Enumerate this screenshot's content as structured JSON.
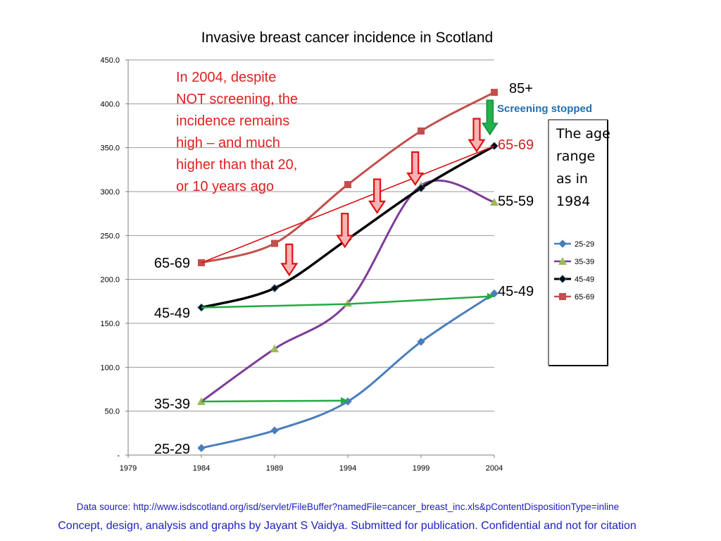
{
  "chart_data": {
    "type": "line",
    "title": "Invasive breast cancer incidence in Scotland",
    "x_ticks": [
      "1979",
      "1984",
      "1989",
      "1994",
      "1999",
      "2004"
    ],
    "xlim": [
      1979,
      2004
    ],
    "y_ticks": [
      "-",
      "50.0",
      "100.0",
      "150.0",
      "200.0",
      "250.0",
      "300.0",
      "350.0",
      "400.0",
      "450.0"
    ],
    "ylim": [
      0,
      450
    ],
    "grid": "horizontal",
    "legend_placement": "right",
    "series": [
      {
        "name": "25-29",
        "color": "#4a7ebb",
        "marker": "diamond",
        "x": [
          1984,
          1989,
          1994,
          1999,
          2004
        ],
        "y": [
          8,
          28,
          61,
          129,
          184
        ]
      },
      {
        "name": "35-39",
        "color": "#7d3c98",
        "marker": "triangle",
        "x": [
          1984,
          1989,
          1994,
          1999,
          2004
        ],
        "y": [
          61,
          121,
          173,
          307,
          288
        ]
      },
      {
        "name": "45-49",
        "color": "#000000",
        "marker": "diamond",
        "x": [
          1984,
          1989,
          1994,
          1999,
          2004
        ],
        "y": [
          168,
          190,
          246,
          304,
          352
        ]
      },
      {
        "name": "65-69",
        "color": "#c0504d",
        "marker": "square",
        "x": [
          1984,
          1989,
          1994,
          1999,
          2004
        ],
        "y": [
          219,
          241,
          308,
          369,
          413
        ]
      }
    ],
    "overlay_lines": [
      {
        "color": "#dd1111",
        "x": [
          1984,
          2004
        ],
        "y": [
          219,
          352
        ]
      },
      {
        "color": "#22aa44",
        "x": [
          1984,
          1994,
          2004
        ],
        "y": [
          168,
          172,
          181
        ]
      },
      {
        "color": "#22aa44",
        "x": [
          1984,
          1994
        ],
        "y": [
          61,
          62
        ]
      }
    ],
    "down_arrows": [
      {
        "x": 1990,
        "y_top": 240,
        "y_bottom": 205
      },
      {
        "x": 1993.8,
        "y_top": 275,
        "y_bottom": 237
      },
      {
        "x": 1996,
        "y_top": 314,
        "y_bottom": 276
      },
      {
        "x": 1998.6,
        "y_top": 345,
        "y_bottom": 308
      },
      {
        "x": 2002.8,
        "y_top": 383,
        "y_bottom": 346
      }
    ],
    "green_arrow": {
      "x": 2003.7,
      "y_top": 404,
      "y_bottom": 365
    },
    "annotation_lines": [
      "In 2004, despite",
      "NOT screening, the",
      "incidence remains",
      "high – and much",
      "higher than that 20,",
      "or 10 years ago"
    ],
    "left_labels": [
      "65-69",
      "45-49",
      "35-39",
      "25-29"
    ],
    "right_labels": {
      "top": "85+",
      "upper_red": "65-69",
      "middle": "55-59",
      "lower": "45-49"
    },
    "screening_label": "Screening stopped",
    "legend_box_lines": [
      "The age",
      "range",
      "as in",
      "1984"
    ]
  },
  "footer": {
    "source": "Data source: http://www.isdscotland.org/isd/servlet/FileBuffer?namedFile=cancer_breast_inc.xls&pContentDispositionType=inline",
    "credit": "Concept, design, analysis and graphs by Jayant S Vaidya.  Submitted for publication. Confidential and not for citation"
  }
}
